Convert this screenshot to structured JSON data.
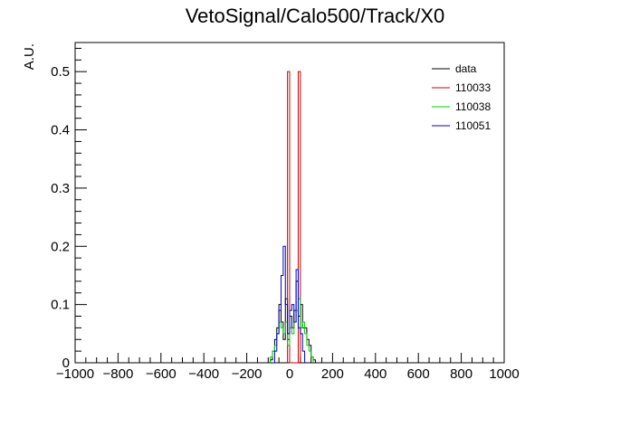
{
  "chart_data": {
    "type": "step-histogram",
    "title": "VetoSignal/Calo500/Track/X0",
    "xlabel": "",
    "ylabel": "A.U.",
    "xlim": [
      -1000,
      1000
    ],
    "ylim": [
      0,
      0.55
    ],
    "xticks": [
      -1000,
      -800,
      -600,
      -400,
      -200,
      0,
      200,
      400,
      600,
      800,
      1000
    ],
    "xtick_labels": [
      "−1000",
      "−800",
      "−600",
      "−400",
      "−200",
      "0",
      "200",
      "400",
      "600",
      "800",
      "1000"
    ],
    "yticks": [
      0,
      0.1,
      0.2,
      0.3,
      0.4,
      0.5
    ],
    "ytick_labels": [
      "0",
      "0.1",
      "0.2",
      "0.3",
      "0.4",
      "0.5"
    ],
    "bin_width": 10,
    "grid": false,
    "legend_position": "top-right",
    "series": [
      {
        "name": "data",
        "color": "#000000",
        "bin_start": -90,
        "values": [
          0.005,
          0.02,
          0.04,
          0.06,
          0.1,
          0.07,
          0.04,
          0.11,
          0.04,
          0.08,
          0.06,
          0.09,
          0.14,
          0.08,
          0.1,
          0.06,
          0.06,
          0.04,
          0.03,
          0.01,
          0.005
        ]
      },
      {
        "name": "110033",
        "color": "#cc0000",
        "bin_start": -10,
        "values": [
          0.5,
          0,
          0,
          0,
          0,
          0.5
        ]
      },
      {
        "name": "110038",
        "color": "#00cc00",
        "bin_start": -90,
        "values": [
          0.01,
          0.02,
          0.03,
          0.05,
          0.07,
          0.06,
          0.05,
          0.07,
          0.03,
          0.06,
          0.05,
          0.07,
          0.09,
          0.11,
          0.06,
          0.07,
          0.05,
          0.03,
          0.02,
          0.01
        ]
      },
      {
        "name": "110051",
        "color": "#0000cc",
        "bin_start": -70,
        "values": [
          0.02,
          0.05,
          0.09,
          0.15,
          0.2,
          0.1,
          0.05,
          0.09,
          0.1,
          0.07,
          0.16,
          0.06,
          0.05,
          0.02
        ]
      }
    ]
  }
}
